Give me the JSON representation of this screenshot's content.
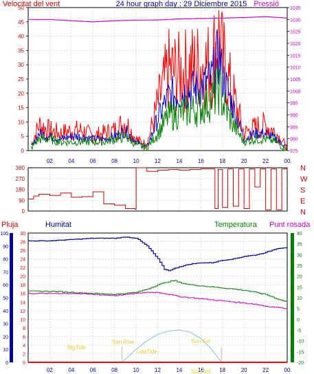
{
  "chart_data": [
    {
      "type": "line",
      "title": "24 hour graph day : 29 Diciembre 2015",
      "left_label": "Velocitat del vent",
      "right_label": "Pressió",
      "x_ticks": [
        "02",
        "04",
        "06",
        "08",
        "10",
        "12",
        "14",
        "16",
        "18",
        "20",
        "22",
        "00"
      ],
      "y_left": {
        "ticks": [
          0,
          5,
          10,
          15,
          20,
          25,
          30,
          35,
          40,
          45,
          50
        ],
        "range": [
          0,
          50
        ]
      },
      "y_right": {
        "ticks": [
          975,
          980,
          985,
          990,
          995,
          1000,
          1005,
          1010,
          1015,
          1020,
          1025,
          1030,
          1035
        ],
        "range": [
          975,
          1035
        ]
      },
      "series": [
        {
          "role": "gust",
          "color": "#ff0000",
          "x": [
            0.3,
            1,
            2,
            3,
            4,
            5,
            6,
            7,
            8,
            9,
            10,
            11,
            12,
            13,
            14,
            15,
            16,
            17,
            17.7,
            18,
            19,
            20,
            21,
            22,
            23,
            24
          ],
          "values": [
            2,
            9,
            7,
            6,
            7,
            7,
            5,
            6,
            7,
            10,
            4,
            2,
            16,
            28,
            27,
            29,
            30,
            30,
            42,
            32,
            19,
            6,
            8,
            9,
            6,
            1
          ]
        },
        {
          "role": "average",
          "color": "#0000cc",
          "x": [
            0.3,
            1,
            2,
            3,
            4,
            5,
            6,
            7,
            8,
            9,
            10,
            11,
            12,
            13,
            14,
            15,
            16,
            17,
            17.7,
            18,
            19,
            20,
            21,
            22,
            23,
            24
          ],
          "values": [
            1,
            6,
            5,
            4,
            5,
            5,
            4,
            4,
            5,
            7,
            3,
            1,
            11,
            19,
            20,
            21,
            22,
            25,
            34,
            26,
            15,
            4,
            6,
            6,
            4,
            1
          ]
        },
        {
          "role": "speed",
          "color": "#008000",
          "x": [
            0.3,
            1,
            2,
            3,
            4,
            5,
            6,
            7,
            8,
            9,
            10,
            11,
            12,
            13,
            14,
            15,
            16,
            17,
            17.7,
            18,
            19,
            20,
            21,
            22,
            23,
            24
          ],
          "values": [
            1,
            4,
            4,
            3,
            3,
            3,
            3,
            3,
            4,
            5,
            2,
            1,
            6,
            12,
            13,
            14,
            15,
            18,
            22,
            17,
            9,
            3,
            4,
            4,
            3,
            0
          ]
        },
        {
          "role": "pressure",
          "color": "#cc00cc",
          "axis": "right",
          "x": [
            0,
            2,
            4,
            6,
            8,
            10,
            12,
            14,
            16,
            18,
            20,
            22,
            24
          ],
          "values": [
            1030,
            1030,
            1029.5,
            1029,
            1029.5,
            1029.7,
            1029.8,
            1030.2,
            1030.4,
            1030.6,
            1030.8,
            1031.2,
            1030.6
          ]
        }
      ]
    },
    {
      "type": "line",
      "title": "",
      "x_ticks": [
        "02",
        "04",
        "06",
        "08",
        "10",
        "12",
        "14",
        "16",
        "18",
        "20",
        "22",
        "00"
      ],
      "y_left": {
        "ticks": [
          0,
          90,
          180,
          270,
          360
        ],
        "range": [
          0,
          360
        ]
      },
      "compass": [
        "N",
        "W",
        "S",
        "E",
        "N"
      ],
      "series": [
        {
          "role": "wind-direction",
          "color": "#cc0000",
          "x": [
            0,
            0.5,
            1,
            2,
            3,
            4,
            5,
            6,
            7,
            8,
            9,
            9.9,
            10,
            11,
            12,
            13,
            14,
            15,
            16,
            17,
            17.3,
            17.6,
            18,
            18.5,
            19,
            19.5,
            20,
            20.5,
            21,
            21.5,
            22,
            22.5,
            23,
            23.5,
            24
          ],
          "values": [
            100,
            125,
            140,
            130,
            150,
            115,
            120,
            160,
            60,
            50,
            20,
            15,
            360,
            330,
            340,
            345,
            340,
            345,
            350,
            350,
            20,
            345,
            30,
            350,
            40,
            350,
            20,
            350,
            200,
            350,
            10,
            350,
            10,
            350,
            340
          ]
        }
      ]
    },
    {
      "type": "line",
      "title": "",
      "left_label": "Pluja",
      "center_label": "Humitat",
      "right_label": "Temperatura",
      "far_right_label": "Punt rosada",
      "x_ticks": [
        "02",
        "04",
        "06",
        "08",
        "10",
        "12",
        "14",
        "16",
        "18",
        "20",
        "22",
        "00"
      ],
      "y_rain": {
        "ticks": [
          0,
          2,
          4,
          6,
          8,
          10,
          12,
          14,
          16,
          18,
          20,
          22,
          24,
          26,
          28,
          30
        ],
        "range": [
          0,
          30
        ]
      },
      "y_humidity": {
        "ticks": [
          0,
          10,
          20,
          30,
          40,
          50,
          60,
          70,
          80,
          90,
          100
        ],
        "range": [
          0,
          100
        ]
      },
      "y_temperature": {
        "ticks": [
          -20,
          -15,
          -10,
          -5,
          0,
          5,
          10,
          15,
          20,
          25,
          30,
          35,
          40
        ],
        "range": [
          -20,
          40
        ]
      },
      "annotations": [
        "Sun Rise",
        "Sun Set",
        "BigTide",
        "LowTide",
        "Sun Set"
      ],
      "series": [
        {
          "role": "humidity",
          "color": "#000099",
          "x": [
            0,
            2,
            4,
            6,
            8,
            9,
            10,
            11,
            12,
            12.6,
            13,
            14,
            15,
            16,
            17,
            18,
            19,
            20,
            21,
            22,
            23,
            24
          ],
          "values": [
            94,
            94,
            95,
            96,
            96,
            97,
            96,
            90,
            80,
            72,
            71,
            74,
            76,
            77,
            77,
            79,
            80,
            82,
            83,
            85,
            88,
            89
          ]
        },
        {
          "role": "temperature",
          "color": "#008000",
          "x": [
            0,
            2,
            4,
            6,
            8,
            9,
            10,
            11,
            12,
            13,
            13.5,
            14,
            15,
            16,
            17,
            18,
            19,
            20,
            21,
            22,
            23,
            24
          ],
          "values": [
            13,
            13,
            12.5,
            12,
            11.5,
            12,
            12.5,
            14,
            16,
            17.5,
            18,
            17,
            16,
            15.5,
            15,
            14.5,
            14,
            13.5,
            12.5,
            11.5,
            9.5,
            8
          ]
        },
        {
          "role": "dew-point",
          "color": "#cc00cc",
          "x": [
            0,
            2,
            4,
            6,
            8,
            9,
            10,
            11,
            12,
            13,
            14,
            15,
            16,
            17,
            18,
            19,
            20,
            21,
            22,
            23,
            24
          ],
          "values": [
            12,
            12,
            12,
            11.5,
            11,
            11.5,
            12,
            12.5,
            12.5,
            11.5,
            10.5,
            10,
            9.5,
            9,
            8.5,
            8,
            7.5,
            7,
            6,
            5.5,
            5
          ]
        },
        {
          "role": "sun-elevation",
          "color": "#88bbee",
          "x": [
            8.7,
            10,
            11,
            12,
            13,
            14,
            15,
            16,
            17,
            17.9
          ],
          "values": [
            -20,
            -14,
            -10,
            -7,
            -5.5,
            -5,
            -6,
            -9,
            -14,
            -20
          ]
        },
        {
          "role": "rain",
          "color": "#ff0000",
          "axis": "rain",
          "x": [
            0,
            24
          ],
          "values": [
            0,
            0
          ]
        }
      ]
    }
  ]
}
